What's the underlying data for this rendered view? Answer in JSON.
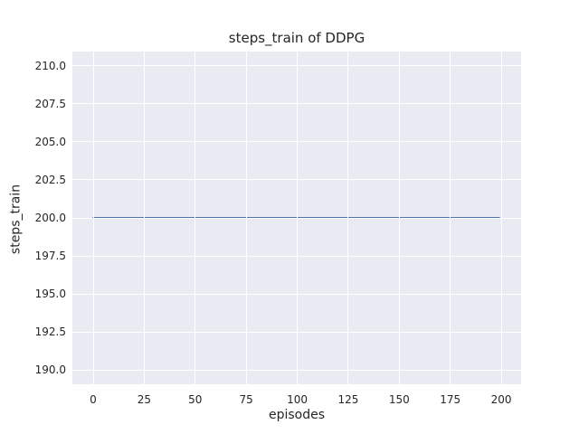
{
  "colors": {
    "figure_bg": "#ffffff",
    "plot_bg": "#eaeaf2",
    "grid": "#ffffff",
    "line": "#4c72b0",
    "text": "#262626"
  },
  "chart_data": {
    "type": "line",
    "title": "steps_train of DDPG",
    "xlabel": "episodes",
    "ylabel": "steps_train",
    "xlim": [
      -10.2,
      209.7
    ],
    "ylim": [
      189.05,
      210.95
    ],
    "grid": true,
    "legend": "none",
    "x_ticks": {
      "values": [
        0,
        25,
        50,
        75,
        100,
        125,
        150,
        175,
        200
      ],
      "labels": [
        "0",
        "25",
        "50",
        "75",
        "100",
        "125",
        "150",
        "175",
        "200"
      ]
    },
    "y_ticks": {
      "values": [
        210.0,
        207.5,
        205.0,
        202.5,
        200.0,
        197.5,
        195.0,
        192.5,
        190.0
      ],
      "labels": [
        "210.0",
        "207.5",
        "205.0",
        "202.5",
        "200.0",
        "197.5",
        "195.0",
        "192.5",
        "190.0"
      ]
    },
    "series": [
      {
        "name": "steps_train",
        "description": "constant value 200 for every episode from 0 to 199",
        "color": "#4c72b0",
        "linewidth": 2,
        "x": [
          0,
          199
        ],
        "y": [
          200,
          200
        ]
      }
    ]
  }
}
